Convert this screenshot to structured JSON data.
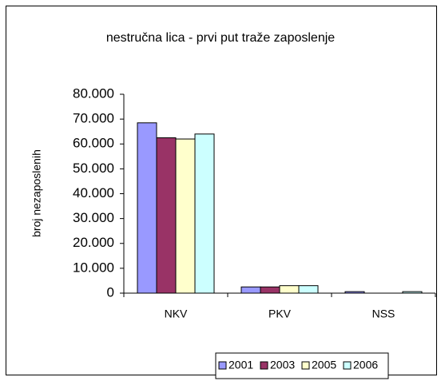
{
  "chart_data": {
    "type": "bar",
    "title": "nestručna lica - prvi put traže zaposlenje",
    "y_label": "broj nezaposlenih",
    "categories": [
      "NKV",
      "PKV",
      "NSS"
    ],
    "series": [
      {
        "name": "2001",
        "color": "#9999ff",
        "values": [
          68500,
          2500,
          600
        ]
      },
      {
        "name": "2003",
        "color": "#993366",
        "values": [
          62500,
          2500,
          0
        ]
      },
      {
        "name": "2005",
        "color": "#ffffcc",
        "values": [
          62000,
          3000,
          0
        ]
      },
      {
        "name": "2006",
        "color": "#ccffff",
        "values": [
          64000,
          3000,
          600
        ]
      }
    ],
    "ylim": [
      0,
      80000
    ],
    "yticks": [
      0,
      {
        "value": 10000,
        "label": "10.000"
      },
      {
        "value": 20000,
        "label": "20.000"
      },
      {
        "value": 30000,
        "label": "30.000"
      },
      {
        "value": 40000,
        "label": "40.000"
      },
      {
        "value": 50000,
        "label": "50.000"
      },
      {
        "value": 60000,
        "label": "60.000"
      },
      {
        "value": 70000,
        "label": "70.000"
      },
      {
        "value": 80000,
        "label": "80.000"
      }
    ],
    "grid": false,
    "legend": "bottom"
  }
}
